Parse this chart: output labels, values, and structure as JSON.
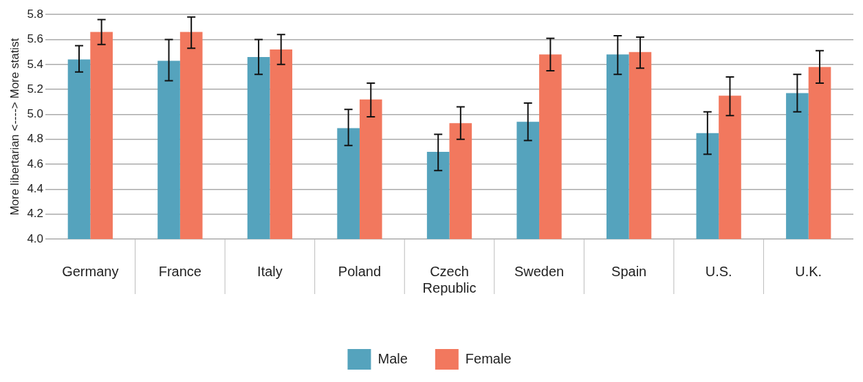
{
  "chart_data": {
    "type": "bar",
    "ylabel": "More libertarian <----> More statist",
    "categories": [
      "Germany",
      "France",
      "Italy",
      "Poland",
      "Czech Republic",
      "Sweden",
      "Spain",
      "U.S.",
      "U.K."
    ],
    "series": [
      {
        "name": "Male",
        "color": "#55a3bd",
        "values": [
          5.44,
          5.43,
          5.46,
          4.89,
          4.7,
          4.94,
          5.48,
          4.85,
          5.17
        ],
        "errors": [
          [
            5.34,
            5.55
          ],
          [
            5.27,
            5.6
          ],
          [
            5.32,
            5.6
          ],
          [
            4.75,
            5.04
          ],
          [
            4.55,
            4.84
          ],
          [
            4.79,
            5.09
          ],
          [
            5.32,
            5.63
          ],
          [
            4.68,
            5.02
          ],
          [
            5.02,
            5.32
          ]
        ]
      },
      {
        "name": "Female",
        "color": "#f2785e",
        "values": [
          5.66,
          5.66,
          5.52,
          5.12,
          4.93,
          5.48,
          5.5,
          5.15,
          5.38
        ],
        "errors": [
          [
            5.56,
            5.76
          ],
          [
            5.53,
            5.78
          ],
          [
            5.4,
            5.64
          ],
          [
            4.98,
            5.25
          ],
          [
            4.8,
            5.06
          ],
          [
            5.35,
            5.61
          ],
          [
            5.37,
            5.62
          ],
          [
            4.99,
            5.3
          ],
          [
            5.25,
            5.51
          ]
        ]
      }
    ],
    "ylim": [
      4.0,
      5.8
    ],
    "yticks": [
      {
        "value": 4,
        "label": "4.0"
      },
      4.2,
      4.4,
      4.6,
      4.8,
      {
        "value": 5,
        "label": "5.0"
      },
      5.2,
      5.4,
      5.6,
      5.8
    ],
    "grid": "y",
    "legend": "bottom"
  }
}
